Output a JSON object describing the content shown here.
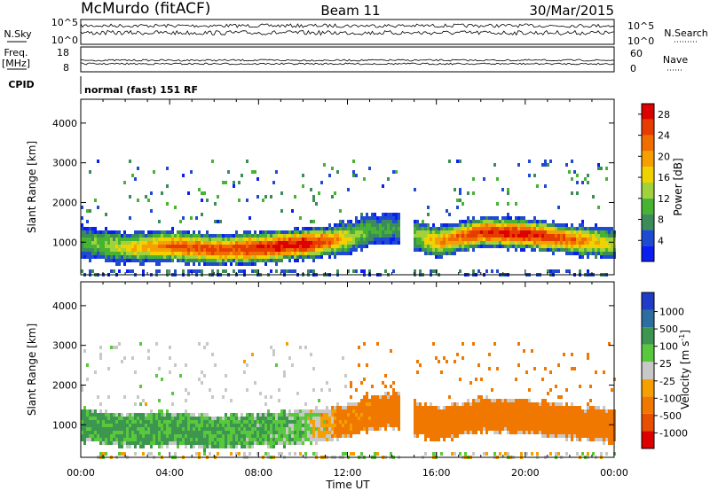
{
  "header": {
    "station": "McMurdo (fitACF)",
    "beam": "Beam 11",
    "date": "30/Mar/2015"
  },
  "noise_panel": {
    "left_label": "N.Sky",
    "right_label": "N.Search",
    "right_ticks": [
      "10^5",
      "10^0"
    ],
    "left_ticks": [
      "10^5",
      "10^0"
    ]
  },
  "freq_panel": {
    "left_label_1": "Freq.",
    "left_label_2": "[MHz]",
    "left_ticks": [
      "18",
      "8"
    ],
    "right_label": "Nave",
    "right_ticks": [
      "60",
      "0"
    ]
  },
  "cpid": {
    "label": "CPID",
    "value": "normal (fast) 151 RF"
  },
  "colors": {
    "power": [
      "#0a1ef0",
      "#1e4bd2",
      "#3c8c5a",
      "#46b432",
      "#a0d23c",
      "#f0d200",
      "#f5a000",
      "#f06e00",
      "#e63c00",
      "#dc0000"
    ],
    "velocity": [
      "#1e3cc8",
      "#2d6ea0",
      "#3c9650",
      "#5ac83c",
      "#c8c8c8",
      "#f5a000",
      "#f07800",
      "#e65000",
      "#dc0000"
    ]
  },
  "chart_data": [
    {
      "type": "heatmap",
      "title": "",
      "xlabel": "Time UT",
      "ylabel": "Slant Range [km]",
      "x_ticks": [
        "00:00",
        "04:00",
        "08:00",
        "12:00",
        "16:00",
        "20:00",
        "00:00"
      ],
      "y_ticks": [
        "1000",
        "2000",
        "3000",
        "4000"
      ],
      "xlim": [
        0,
        24
      ],
      "ylim": [
        180,
        4600
      ],
      "colorbar_label": "Power [dB]",
      "colorbar_ticks": [
        "4",
        "8",
        "12",
        "16",
        "20",
        "24",
        "28"
      ],
      "colorbar_range": [
        0,
        30
      ],
      "main_band": {
        "hours": [
          0,
          2,
          4,
          6,
          8,
          10,
          11,
          12,
          13,
          14.5,
          15,
          16,
          18,
          20,
          22,
          24
        ],
        "center_km": [
          1050,
          900,
          950,
          850,
          900,
          1000,
          1050,
          1150,
          1350,
          1400,
          1200,
          1050,
          1300,
          1250,
          1100,
          1000
        ],
        "peak_db": [
          10,
          16,
          24,
          25,
          27,
          29,
          24,
          16,
          10,
          8,
          12,
          20,
          27,
          28,
          24,
          14
        ]
      }
    },
    {
      "type": "heatmap",
      "title": "",
      "xlabel": "Time UT",
      "ylabel": "Slant Range [km]",
      "x_ticks": [
        "00:00",
        "04:00",
        "08:00",
        "12:00",
        "16:00",
        "20:00",
        "00:00"
      ],
      "y_ticks": [
        "1000",
        "2000",
        "3000",
        "4000"
      ],
      "xlim": [
        0,
        24
      ],
      "ylim": [
        180,
        4600
      ],
      "colorbar_label": "Velocity [m s^-1]",
      "colorbar_ticks": [
        "1000",
        "500",
        "100",
        "25",
        "-25",
        "-100",
        "-500",
        "-1000"
      ],
      "colorbar_range": [
        -1200,
        1200
      ],
      "main_band": {
        "hours": [
          0,
          4,
          8,
          10,
          12,
          14.5,
          15,
          18,
          20,
          24
        ],
        "velocity": [
          150,
          120,
          100,
          60,
          -150,
          -200,
          -300,
          -320,
          -300,
          -250
        ]
      }
    }
  ]
}
